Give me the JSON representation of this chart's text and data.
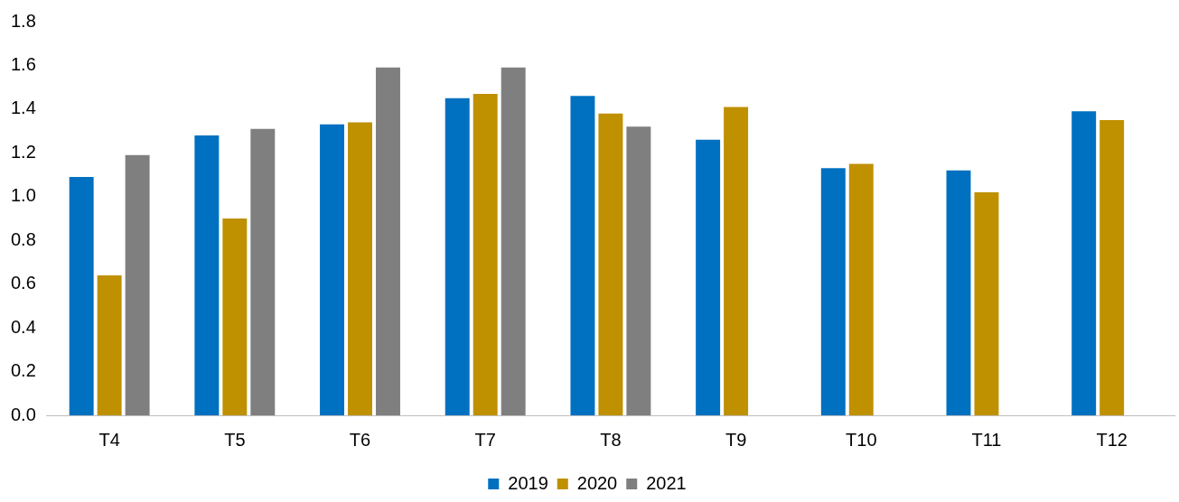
{
  "chart_data": {
    "type": "bar",
    "categories": [
      "T4",
      "T5",
      "T6",
      "T7",
      "T8",
      "T9",
      "T10",
      "T11",
      "T12"
    ],
    "series": [
      {
        "name": "2019",
        "color": "#0070c0",
        "values": [
          1.09,
          1.28,
          1.33,
          1.45,
          1.46,
          1.26,
          1.13,
          1.12,
          1.39
        ]
      },
      {
        "name": "2020",
        "color": "#bf9000",
        "values": [
          0.64,
          0.9,
          1.34,
          1.47,
          1.38,
          1.41,
          1.15,
          1.02,
          1.35
        ]
      },
      {
        "name": "2021",
        "color": "#7f7f7f",
        "values": [
          1.19,
          1.31,
          1.59,
          1.59,
          1.32,
          null,
          null,
          null,
          null
        ]
      }
    ],
    "ylim": [
      0,
      1.8
    ],
    "yticks": [
      {
        "value": 0,
        "label": "0.0"
      },
      {
        "value": 0.2,
        "label": "0.2"
      },
      {
        "value": 0.4,
        "label": "0.4"
      },
      {
        "value": 0.6,
        "label": "0.6"
      },
      {
        "value": 0.8,
        "label": "0.8"
      },
      {
        "value": 1,
        "label": "1.0"
      },
      {
        "value": 1.2,
        "label": "1.2"
      },
      {
        "value": 1.4,
        "label": "1.4"
      },
      {
        "value": 1.6,
        "label": "1.6"
      },
      {
        "value": 1.8,
        "label": "1.8"
      }
    ],
    "grid": false,
    "legend": "bottom"
  }
}
